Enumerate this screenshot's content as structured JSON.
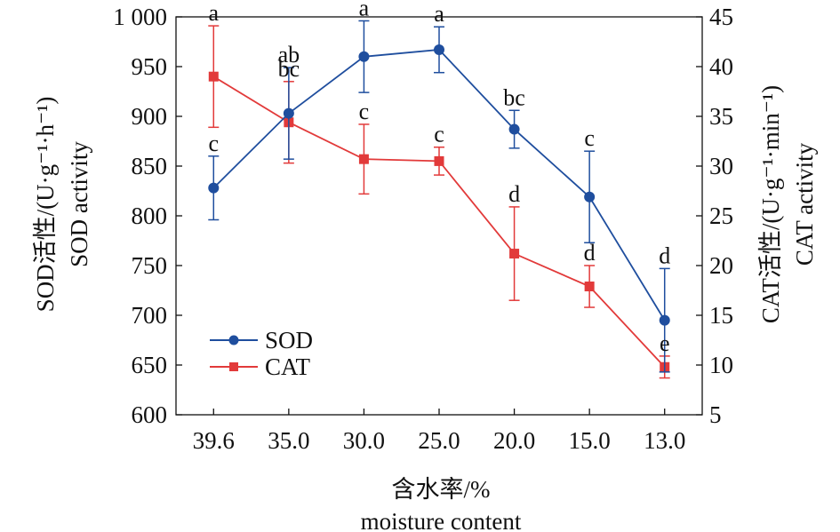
{
  "chart_data": {
    "type": "line",
    "categories": [
      "39.6",
      "35.0",
      "30.0",
      "25.0",
      "20.0",
      "15.0",
      "13.0"
    ],
    "xlabel": [
      "含水率/%",
      "moisture content"
    ],
    "ylabel_left": [
      "SOD活性/(U·g⁻¹·h⁻¹)",
      "SOD activity"
    ],
    "ylabel_right": [
      "CAT活性/(U·g⁻¹·min⁻¹)",
      "CAT activity"
    ],
    "ylim_left": [
      600,
      1000
    ],
    "yticks_left": [
      600,
      650,
      700,
      750,
      800,
      850,
      900,
      950,
      1000
    ],
    "ytick_labels_left": [
      "600",
      "650",
      "700",
      "750",
      "800",
      "850",
      "900",
      "950",
      "1 000"
    ],
    "ylim_right": [
      5,
      45
    ],
    "yticks_right": [
      5,
      10,
      15,
      20,
      25,
      30,
      35,
      40,
      45
    ],
    "ytick_labels_right": [
      "5",
      "10",
      "15",
      "20",
      "25",
      "30",
      "35",
      "40",
      "45"
    ],
    "legend_position": "bottom-left",
    "series": [
      {
        "name": "SOD",
        "axis": "left",
        "color": "#1f4e9e",
        "marker": "circle",
        "values": [
          828,
          903,
          960,
          967,
          887,
          819,
          695
        ],
        "errors": [
          32,
          46,
          36,
          23,
          19,
          46,
          52
        ],
        "labels": [
          "c",
          "ab",
          "a",
          "a",
          "bc",
          "c",
          "d"
        ]
      },
      {
        "name": "CAT",
        "axis": "right",
        "color": "#e23a3a",
        "marker": "square",
        "values": [
          39.0,
          34.4,
          30.7,
          30.5,
          21.2,
          17.9,
          9.8
        ],
        "errors": [
          5.1,
          4.1,
          3.5,
          1.4,
          4.7,
          2.1,
          1.1
        ],
        "labels": [
          "a",
          "bc",
          "c",
          "c",
          "d",
          "d",
          "e"
        ]
      }
    ]
  }
}
